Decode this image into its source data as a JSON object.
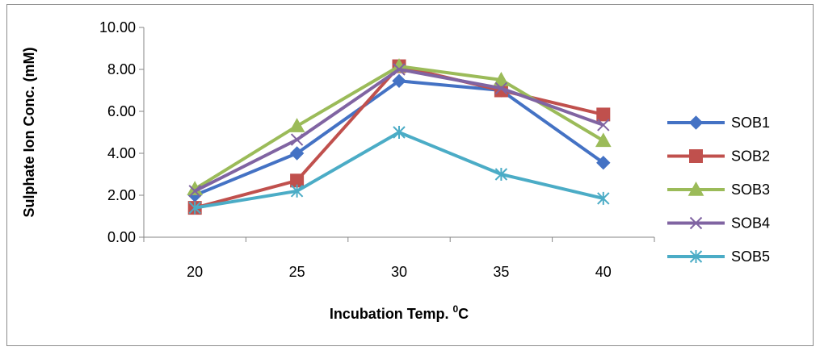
{
  "chart_data": {
    "type": "line",
    "title": "",
    "xlabel": "Incubation Temp. ",
    "xlabel_sup": "0",
    "xlabel_suffix": "C",
    "ylabel": "Sulphate Ion Conc. (mM)",
    "categories": [
      "20",
      "25",
      "30",
      "35",
      "40"
    ],
    "ylim": [
      0,
      10
    ],
    "yticks": [
      "0.00",
      "2.00",
      "4.00",
      "6.00",
      "8.00",
      "10.00"
    ],
    "grid": false,
    "legend_position": "right",
    "series": [
      {
        "name": "SOB1",
        "values": [
          2.0,
          4.0,
          7.45,
          7.0,
          3.55
        ],
        "color": "#4472C4",
        "marker": "diamond"
      },
      {
        "name": "SOB2",
        "values": [
          1.4,
          2.7,
          8.15,
          7.0,
          5.85
        ],
        "color": "#C0504D",
        "marker": "square"
      },
      {
        "name": "SOB3",
        "values": [
          2.3,
          5.3,
          8.15,
          7.5,
          4.6
        ],
        "color": "#9BBB59",
        "marker": "triangle"
      },
      {
        "name": "SOB4",
        "values": [
          2.2,
          4.65,
          8.0,
          7.1,
          5.35
        ],
        "color": "#8064A2",
        "marker": "x"
      },
      {
        "name": "SOB5",
        "values": [
          1.4,
          2.2,
          5.0,
          3.0,
          1.85
        ],
        "color": "#4BACC6",
        "marker": "star"
      }
    ]
  }
}
